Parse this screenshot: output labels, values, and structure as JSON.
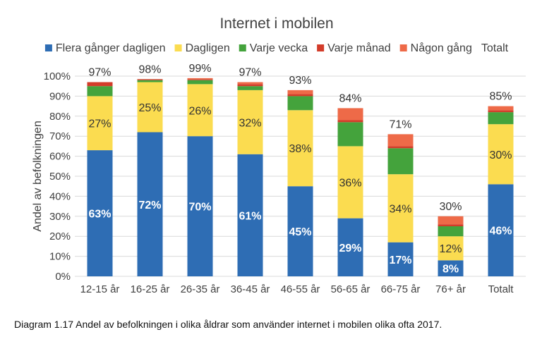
{
  "chart_data": {
    "type": "bar",
    "stacked": true,
    "title": "Internet i mobilen",
    "xlabel": "",
    "ylabel": "Andel av befolkningen",
    "ylim": [
      0,
      100
    ],
    "yticks": [
      "0%",
      "10%",
      "20%",
      "30%",
      "40%",
      "50%",
      "60%",
      "70%",
      "80%",
      "90%",
      "100%"
    ],
    "grid": true,
    "legend_position": "top",
    "categories": [
      "12-15 år",
      "16-25 år",
      "26-35 år",
      "36-45 år",
      "46-55 år",
      "56-65 år",
      "66-75 år",
      "76+ år",
      "Totalt"
    ],
    "series": [
      {
        "name": "Flera gånger dagligen",
        "color": "#2e6db4",
        "values": [
          63,
          72,
          70,
          61,
          45,
          29,
          17,
          8,
          46
        ],
        "labels": [
          "63%",
          "72%",
          "70%",
          "61%",
          "45%",
          "29%",
          "17%",
          "8%",
          "46%"
        ]
      },
      {
        "name": "Dagligen",
        "color": "#fbdc50",
        "values": [
          27,
          25,
          26,
          32,
          38,
          36,
          34,
          12,
          30
        ],
        "labels": [
          "27%",
          "25%",
          "26%",
          "32%",
          "38%",
          "36%",
          "34%",
          "12%",
          "30%"
        ]
      },
      {
        "name": "Varje vecka",
        "color": "#44a33c",
        "values": [
          5,
          1,
          2,
          2,
          7,
          12,
          13,
          5,
          6
        ],
        "labels": []
      },
      {
        "name": "Varje månad",
        "color": "#d33c2a",
        "values": [
          2,
          0.5,
          0.5,
          1,
          1,
          1,
          1,
          1,
          1
        ],
        "labels": []
      },
      {
        "name": "Någon gång",
        "color": "#ee6a48",
        "values": [
          0,
          0,
          0.5,
          1,
          2,
          6,
          6,
          4,
          2
        ],
        "labels": []
      }
    ],
    "totals": [
      "97%",
      "98%",
      "99%",
      "97%",
      "93%",
      "84%",
      "71%",
      "30%",
      "85%"
    ],
    "totals_legend_label": "Totalt"
  },
  "caption": "Diagram 1.17 Andel av befolkningen i olika åldrar som använder internet i mobilen olika ofta 2017.",
  "colors": {
    "text": "#404040",
    "grid": "#d9d9d9",
    "white_label": "#ffffff",
    "dark_label": "#333333"
  }
}
